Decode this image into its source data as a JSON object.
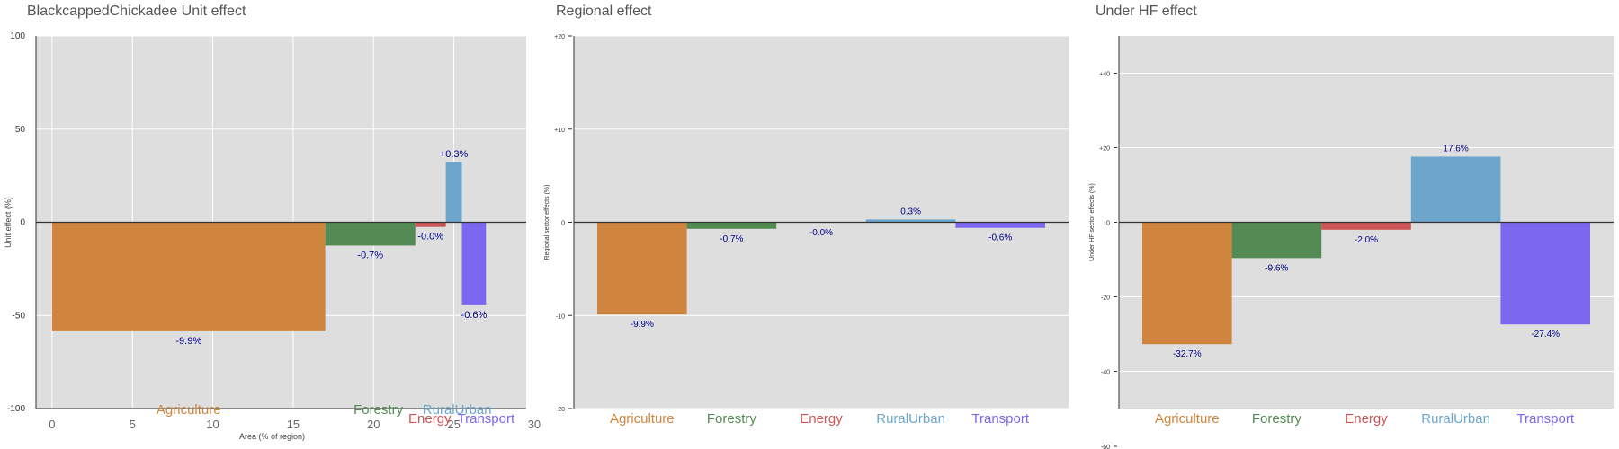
{
  "colors": {
    "Agriculture": "#d0853f",
    "Forestry": "#548b54",
    "Energy": "#cd5555",
    "RuralUrban": "#6ca6cd",
    "Transport": "#7b68ee",
    "label_text": "#00008b",
    "panel_bg": "#dedede",
    "grid": "#ffffff"
  },
  "chart_data": [
    {
      "type": "bar",
      "title": "BlackcappedChickadee Unit effect",
      "xlabel": "Area (% of region)",
      "ylabel": "Unit effect (%)",
      "xlim": [
        -1,
        29.5
      ],
      "ylim": [
        -100,
        100
      ],
      "xticks": [
        "0",
        "5",
        "10",
        "15",
        "20",
        "25",
        "30"
      ],
      "xtick_values": [
        0,
        5,
        10,
        15,
        20,
        25,
        30
      ],
      "yticks": [
        "100",
        "50",
        "0",
        "-50",
        "-100"
      ],
      "ytick_values": [
        100,
        50,
        0,
        -50,
        -100
      ],
      "bars": [
        {
          "category": "Agriculture",
          "x0": 0,
          "x1": 17,
          "value": -58.5,
          "label": "-9.9%",
          "cat_label_x": 8.5
        },
        {
          "category": "Forestry",
          "x0": 17,
          "x1": 22.6,
          "value": -12.5,
          "label": "-0.7%",
          "cat_label_x": 20.3
        },
        {
          "category": "Energy",
          "x0": 22.6,
          "x1": 24.5,
          "value": -2.5,
          "label": "-0.0%",
          "cat_label_x": 23.5
        },
        {
          "category": "RuralUrban",
          "x0": 24.5,
          "x1": 25.5,
          "value": 32.5,
          "label": "+0.3%",
          "cat_label_x": 25.2
        },
        {
          "category": "Transport",
          "x0": 25.5,
          "x1": 27,
          "value": -44.5,
          "label": "-0.6%",
          "cat_label_x": 27
        }
      ]
    },
    {
      "type": "bar",
      "title": "Regional effect",
      "ylabel": "Regional sector effects (%)",
      "ylim": [
        -20,
        20
      ],
      "yticks": [
        "+20",
        "+10",
        "0",
        "-10",
        "-20"
      ],
      "ytick_values": [
        20,
        10,
        0,
        -10,
        -20
      ],
      "categories": [
        "Agriculture",
        "Forestry",
        "Energy",
        "RuralUrban",
        "Transport"
      ],
      "values": [
        -9.9,
        -0.7,
        -0.04,
        0.3,
        -0.6
      ],
      "labels": [
        "-9.9%",
        "-0.7%",
        "-0.0%",
        "0.3%",
        "-0.6%"
      ]
    },
    {
      "type": "bar",
      "title": "Under HF effect",
      "ylabel": "Under HF sector effects (%)",
      "ylim": [
        -50,
        50
      ],
      "yticks": [
        "+40",
        "+20",
        "0",
        "-20",
        "-40",
        "-60"
      ],
      "ytick_values": [
        40,
        20,
        0,
        -20,
        -40,
        -60
      ],
      "categories": [
        "Agriculture",
        "Forestry",
        "Energy",
        "RuralUrban",
        "Transport"
      ],
      "values": [
        -32.7,
        -9.6,
        -2.0,
        17.6,
        -27.4
      ],
      "labels": [
        "-32.7%",
        "-9.6%",
        "-2.0%",
        "17.6%",
        "-27.4%"
      ]
    }
  ]
}
